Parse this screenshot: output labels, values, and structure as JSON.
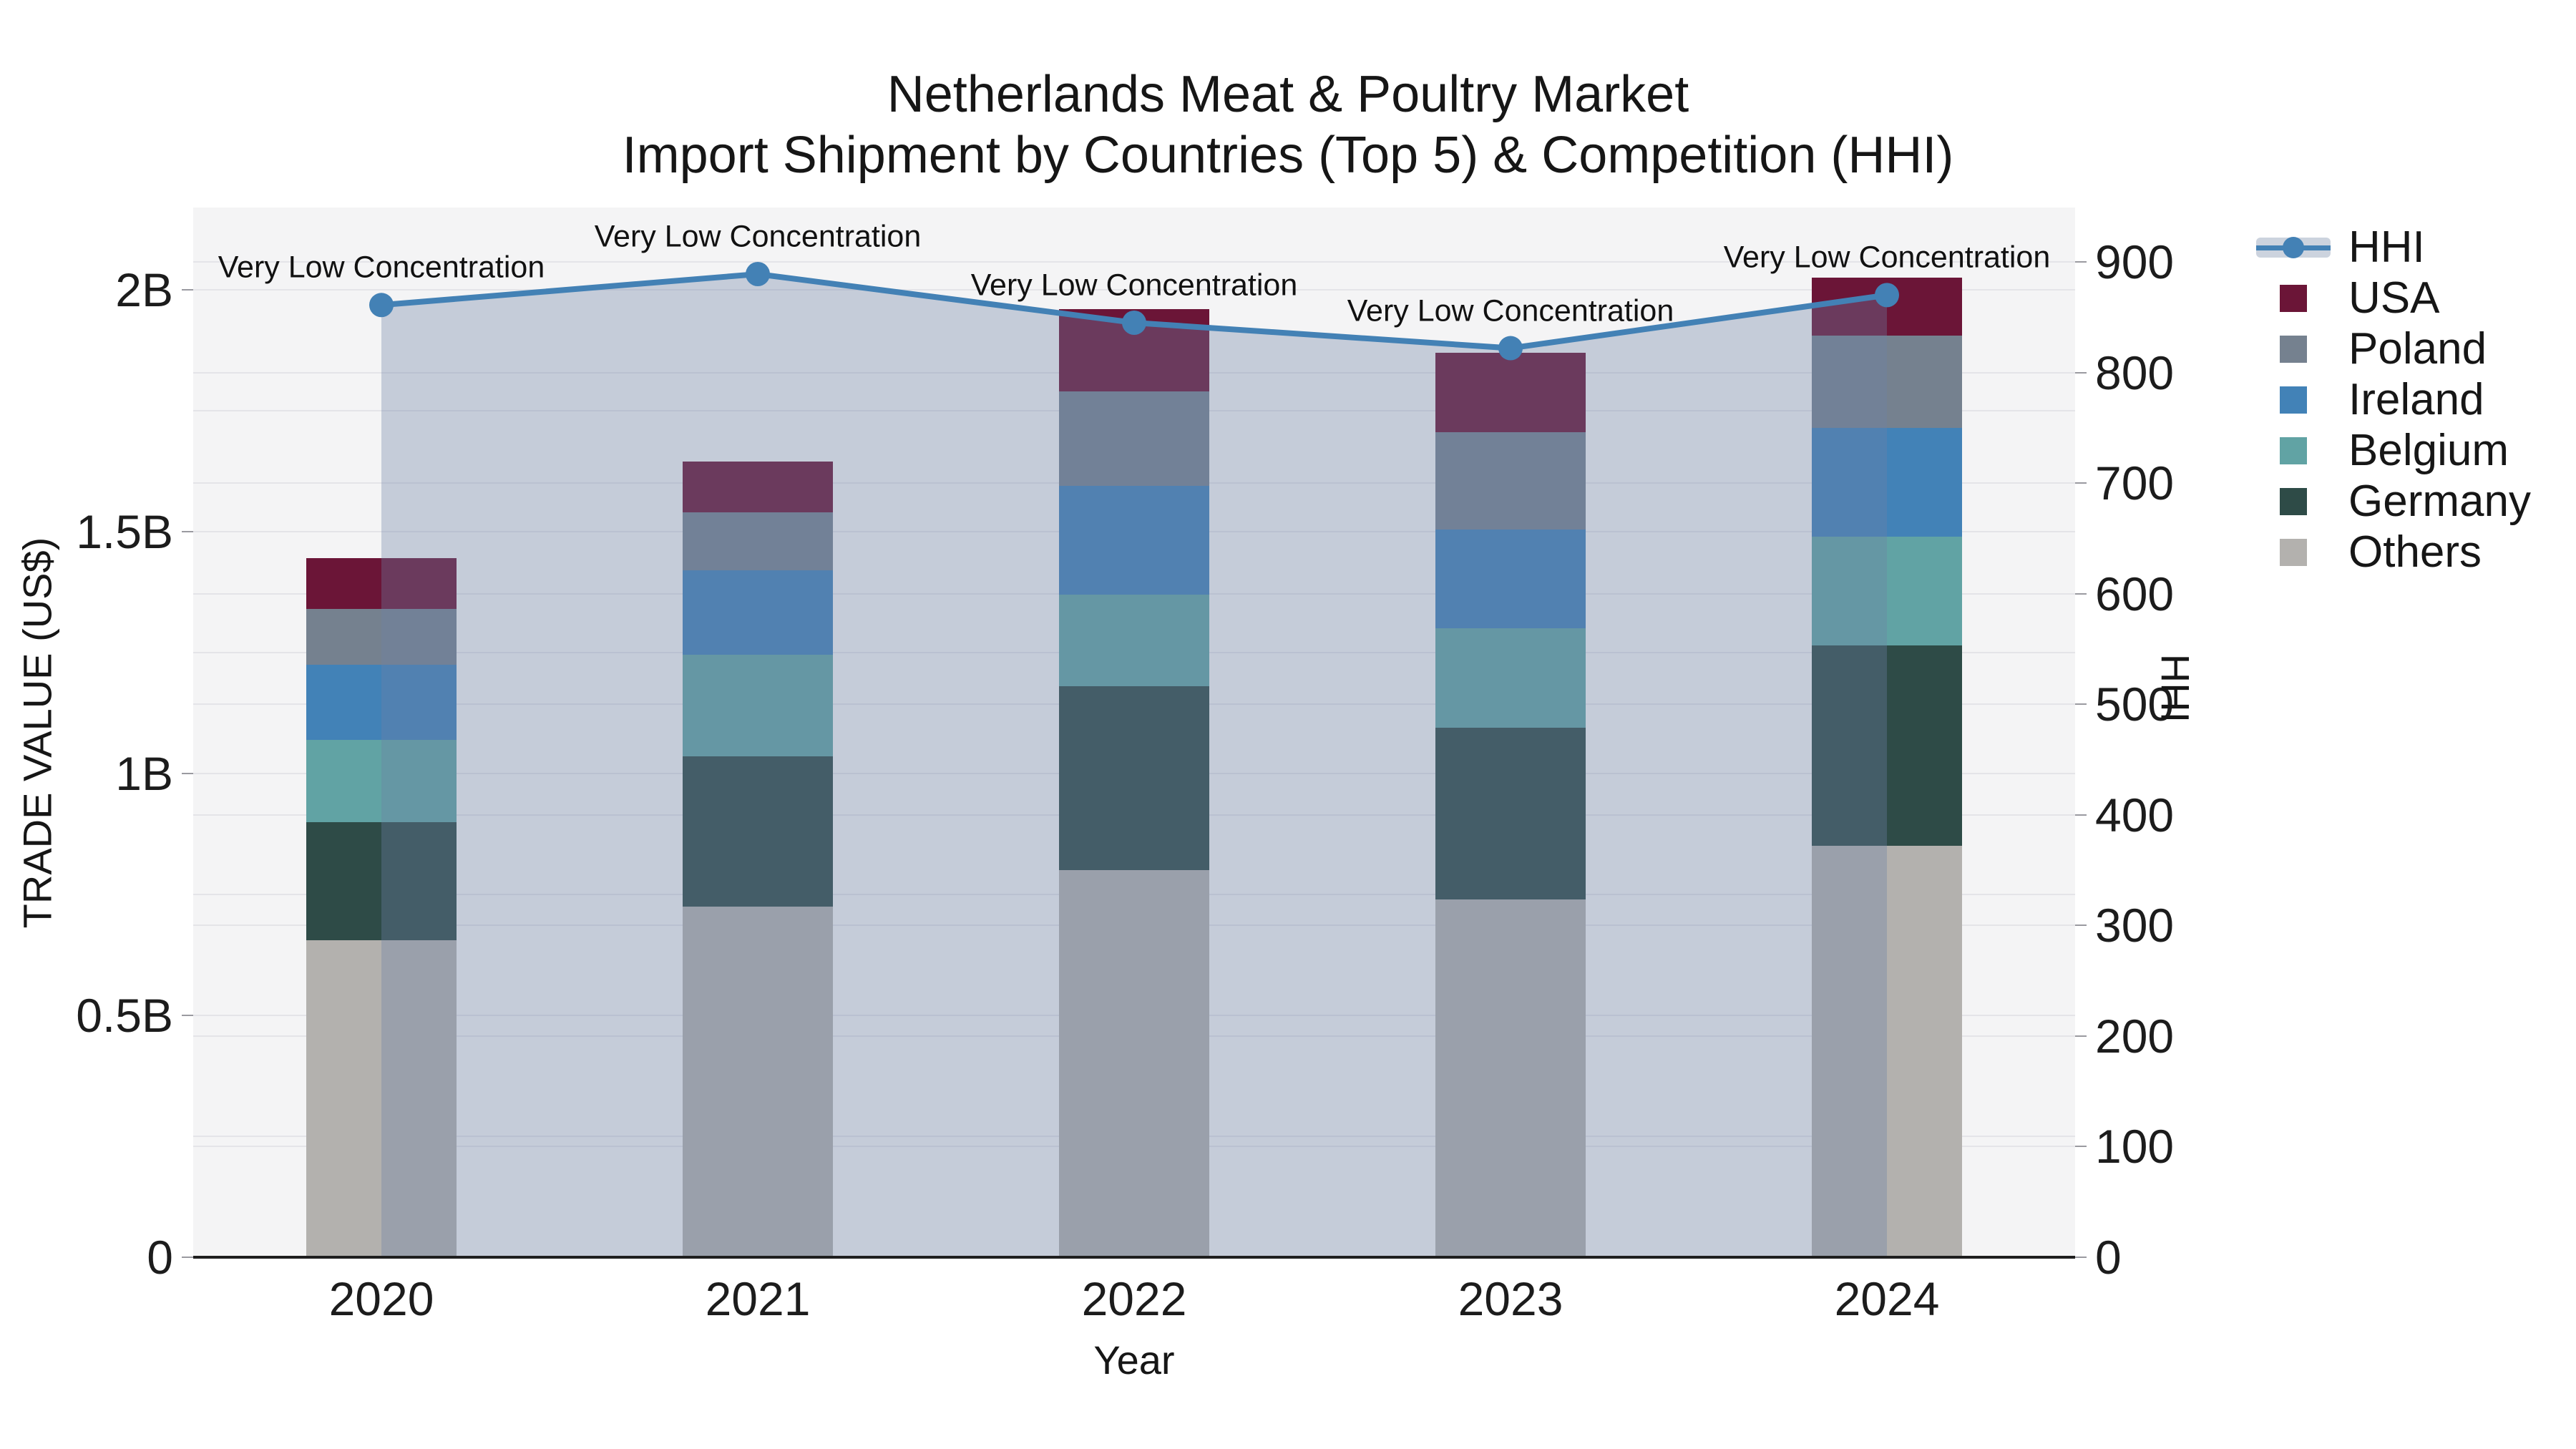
{
  "title": {
    "line1": "Netherlands Meat & Poultry Market",
    "line2": "Import Shipment by Countries (Top 5) & Competition (HHI)"
  },
  "axes": {
    "x": {
      "title": "Year",
      "ticks": [
        "2020",
        "2021",
        "2022",
        "2023",
        "2024"
      ]
    },
    "y_left": {
      "title": "TRADE VALUE (US$)",
      "tick_labels": [
        "0",
        "0.5B",
        "1B",
        "1.5B",
        "2B"
      ],
      "tick_values": [
        0,
        0.5,
        1,
        1.5,
        2
      ],
      "max": 2.0,
      "minor_grid_step": 0.25
    },
    "y_right": {
      "title": "HHI",
      "tick_labels": [
        "0",
        "100",
        "200",
        "300",
        "400",
        "500",
        "600",
        "700",
        "800",
        "900"
      ],
      "tick_values": [
        0,
        100,
        200,
        300,
        400,
        500,
        600,
        700,
        800,
        900
      ],
      "max": 900
    }
  },
  "annotations": {
    "label": "Very Low Concentration"
  },
  "legend": {
    "items": [
      {
        "label": "HHI",
        "type": "line",
        "color": "#4381b5"
      },
      {
        "label": "USA",
        "type": "swatch",
        "color": "#6b1537"
      },
      {
        "label": "Poland",
        "type": "swatch",
        "color": "#75818f"
      },
      {
        "label": "Ireland",
        "type": "swatch",
        "color": "#4282b7"
      },
      {
        "label": "Belgium",
        "type": "swatch",
        "color": "#61a3a4"
      },
      {
        "label": "Germany",
        "type": "swatch",
        "color": "#2e4b47"
      },
      {
        "label": "Others",
        "type": "swatch",
        "color": "#b3b1ae"
      }
    ]
  },
  "colors": {
    "plot_background": "#f4f4f5",
    "gridline": "#e4e4e8",
    "axis_line": "#1f1f1f",
    "hhi_line": "#4381b5",
    "hhi_area_fill": "rgba(110,130,165,0.35)"
  },
  "chart_data": {
    "type": "bar",
    "subtype": "stacked-bars-with-line-overlay",
    "categories": [
      "2020",
      "2021",
      "2022",
      "2023",
      "2024"
    ],
    "bar_value_unit": "billions US$",
    "series": [
      {
        "name": "Others",
        "color": "#b3b1ae",
        "values": [
          0.655,
          0.725,
          0.8,
          0.74,
          0.85
        ]
      },
      {
        "name": "Germany",
        "color": "#2e4b47",
        "values": [
          0.245,
          0.31,
          0.38,
          0.355,
          0.415
        ]
      },
      {
        "name": "Belgium",
        "color": "#61a3a4",
        "values": [
          0.17,
          0.21,
          0.19,
          0.205,
          0.225
        ]
      },
      {
        "name": "Ireland",
        "color": "#4282b7",
        "values": [
          0.155,
          0.175,
          0.225,
          0.205,
          0.225
        ]
      },
      {
        "name": "Poland",
        "color": "#75818f",
        "values": [
          0.115,
          0.12,
          0.195,
          0.2,
          0.19
        ]
      },
      {
        "name": "USA",
        "color": "#6b1537",
        "values": [
          0.105,
          0.105,
          0.17,
          0.165,
          0.12
        ]
      }
    ],
    "bar_totals": [
      1.445,
      1.645,
      1.96,
      1.87,
      2.025
    ],
    "line": {
      "name": "HHI",
      "axis": "right",
      "color": "#4381b5",
      "values": [
        861,
        889,
        845,
        822,
        870
      ],
      "area_fill": "rgba(110,130,165,0.35)",
      "point_annotations": [
        "Very Low Concentration",
        "Very Low Concentration",
        "Very Low Concentration",
        "Very Low Concentration",
        "Very Low Concentration"
      ]
    },
    "title": "Netherlands Meat & Poultry Market — Import Shipment by Countries (Top 5) & Competition (HHI)",
    "xlabel": "Year",
    "ylabel_left": "TRADE VALUE (US$)",
    "ylabel_right": "HHI",
    "ylim_left": [
      0,
      2.0
    ],
    "ylim_right": [
      0,
      900
    ],
    "grid": true,
    "legend_position": "right"
  }
}
